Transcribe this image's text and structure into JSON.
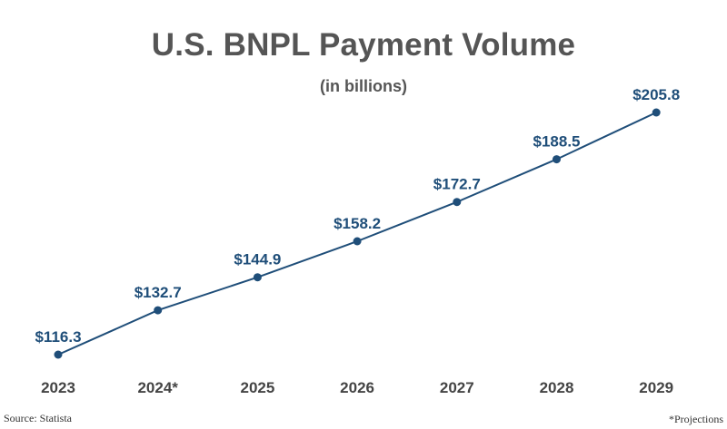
{
  "title": "U.S. BNPL Payment Volume",
  "subtitle": "(in billions)",
  "source": "Source: Statista",
  "note": "*Projections",
  "colors": {
    "line": "#1f4e79",
    "value_label": "#1f4e79",
    "axis_label": "#444444",
    "title": "#555555"
  },
  "chart_data": {
    "type": "line",
    "title": "U.S. BNPL Payment Volume",
    "subtitle": "(in billions)",
    "categories": [
      "2023",
      "2024*",
      "2025",
      "2026",
      "2027",
      "2028",
      "2029"
    ],
    "series": [
      {
        "values": [
          116.3,
          132.7,
          144.9,
          158.2,
          172.7,
          188.5,
          205.8
        ],
        "labels": [
          "$116.3",
          "$132.7",
          "$144.9",
          "$158.2",
          "$172.7",
          "$188.5",
          "$205.8"
        ]
      }
    ],
    "xlabel": "",
    "ylabel": "",
    "ylim": [
      116.3,
      205.8
    ],
    "grid": false,
    "legend": "none"
  }
}
